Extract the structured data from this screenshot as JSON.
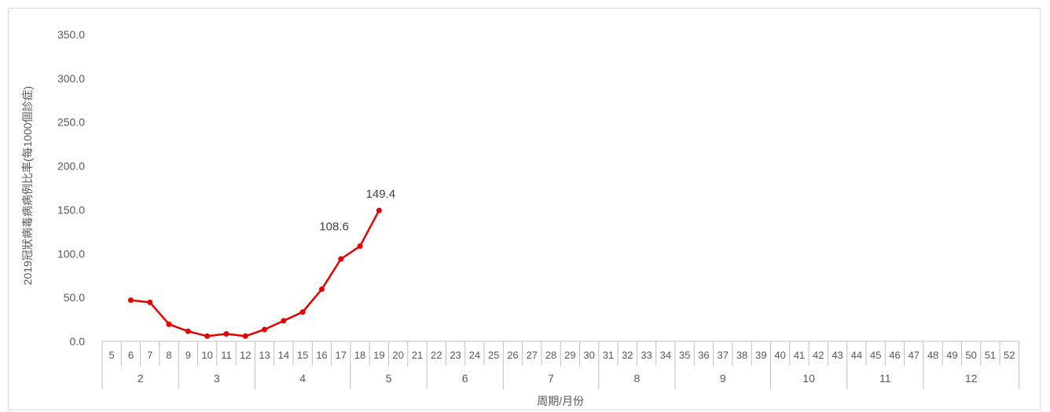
{
  "chart_data": {
    "type": "line",
    "ylabel": "2019冠狀病毒病病例比率(每1000個診症)",
    "xlabel": "周期/月份",
    "ylim": [
      0,
      350
    ],
    "yticks": [
      "0.0",
      "50.0",
      "100.0",
      "150.0",
      "200.0",
      "250.0",
      "300.0",
      "350.0"
    ],
    "grid": false,
    "legend": "none",
    "weeks": [
      "5",
      "6",
      "7",
      "8",
      "9",
      "10",
      "11",
      "12",
      "13",
      "14",
      "15",
      "16",
      "17",
      "18",
      "19",
      "20",
      "21",
      "22",
      "23",
      "24",
      "25",
      "26",
      "27",
      "28",
      "29",
      "30",
      "31",
      "32",
      "33",
      "34",
      "35",
      "36",
      "37",
      "38",
      "39",
      "40",
      "41",
      "42",
      "43",
      "44",
      "45",
      "46",
      "47",
      "48",
      "49",
      "50",
      "51",
      "52"
    ],
    "months": [
      {
        "label": "2",
        "weeks": [
          "5",
          "6",
          "7",
          "8"
        ]
      },
      {
        "label": "3",
        "weeks": [
          "9",
          "10",
          "11",
          "12"
        ]
      },
      {
        "label": "4",
        "weeks": [
          "13",
          "14",
          "15",
          "16",
          "17"
        ]
      },
      {
        "label": "5",
        "weeks": [
          "18",
          "19",
          "20",
          "21"
        ]
      },
      {
        "label": "6",
        "weeks": [
          "22",
          "23",
          "24",
          "25"
        ]
      },
      {
        "label": "7",
        "weeks": [
          "26",
          "27",
          "28",
          "29",
          "30"
        ]
      },
      {
        "label": "8",
        "weeks": [
          "31",
          "32",
          "33",
          "34"
        ]
      },
      {
        "label": "9",
        "weeks": [
          "35",
          "36",
          "37",
          "38",
          "39"
        ]
      },
      {
        "label": "10",
        "weeks": [
          "40",
          "41",
          "42",
          "43"
        ]
      },
      {
        "label": "11",
        "weeks": [
          "44",
          "45",
          "46",
          "47"
        ]
      },
      {
        "label": "12",
        "weeks": [
          "48",
          "49",
          "50",
          "51",
          "52"
        ]
      }
    ],
    "series": [
      {
        "color": "#e60000",
        "points": [
          {
            "week": "6",
            "value": 47.0
          },
          {
            "week": "7",
            "value": 44.5
          },
          {
            "week": "8",
            "value": 19.5
          },
          {
            "week": "9",
            "value": 11.5
          },
          {
            "week": "10",
            "value": 6.0
          },
          {
            "week": "11",
            "value": 8.5
          },
          {
            "week": "12",
            "value": 6.0
          },
          {
            "week": "13",
            "value": 13.5
          },
          {
            "week": "14",
            "value": 23.5
          },
          {
            "week": "15",
            "value": 33.5
          },
          {
            "week": "16",
            "value": 59.5
          },
          {
            "week": "17",
            "value": 94.0
          },
          {
            "week": "18",
            "value": 108.6,
            "label": "108.6"
          },
          {
            "week": "19",
            "value": 149.4,
            "label": "149.4"
          }
        ]
      }
    ]
  }
}
